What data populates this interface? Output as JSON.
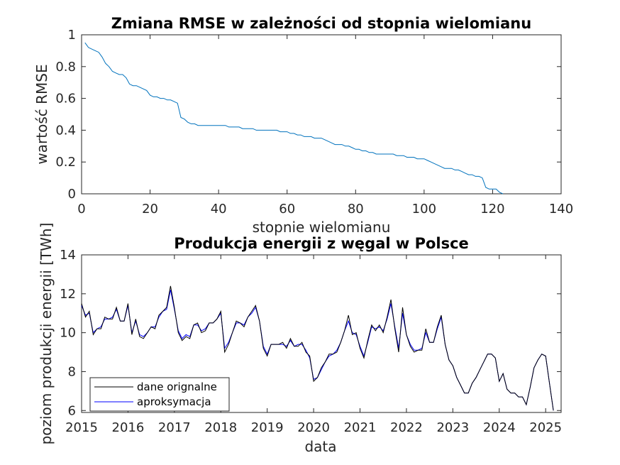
{
  "chart_data": [
    {
      "type": "line",
      "title": "Zmiana RMSE w zależności od stopnia wielomianu",
      "xlabel": "stopnie wielomianu",
      "ylabel": "wartość RMSE",
      "xlim": [
        0,
        140
      ],
      "ylim": [
        0,
        1
      ],
      "xticks": [
        0,
        20,
        40,
        60,
        80,
        100,
        120,
        140
      ],
      "yticks": [
        0,
        0.2,
        0.4,
        0.6,
        0.8,
        1
      ],
      "grid": false,
      "colors": {
        "line": "#0072BD"
      },
      "series": [
        {
          "x": [
            1,
            2,
            3,
            4,
            5,
            6,
            7,
            8,
            9,
            10,
            11,
            12,
            13,
            14,
            15,
            16,
            17,
            18,
            19,
            20,
            21,
            22,
            23,
            24,
            25,
            26,
            27,
            28,
            29,
            30,
            31,
            32,
            33,
            34,
            35,
            36,
            37,
            38,
            39,
            40,
            41,
            42,
            43,
            44,
            45,
            46,
            47,
            48,
            49,
            50,
            51,
            52,
            53,
            54,
            55,
            56,
            57,
            58,
            59,
            60,
            61,
            62,
            63,
            64,
            65,
            66,
            67,
            68,
            69,
            70,
            71,
            72,
            73,
            74,
            75,
            76,
            77,
            78,
            79,
            80,
            81,
            82,
            83,
            84,
            85,
            86,
            87,
            88,
            89,
            90,
            91,
            92,
            93,
            94,
            95,
            96,
            97,
            98,
            99,
            100,
            101,
            102,
            103,
            104,
            105,
            106,
            107,
            108,
            109,
            110,
            111,
            112,
            113,
            114,
            115,
            116,
            117,
            118,
            119,
            120,
            121,
            122,
            123
          ],
          "values": [
            0.95,
            0.92,
            0.91,
            0.9,
            0.89,
            0.86,
            0.82,
            0.8,
            0.77,
            0.76,
            0.75,
            0.75,
            0.73,
            0.69,
            0.68,
            0.68,
            0.67,
            0.66,
            0.65,
            0.62,
            0.61,
            0.61,
            0.6,
            0.6,
            0.59,
            0.59,
            0.58,
            0.57,
            0.48,
            0.47,
            0.45,
            0.44,
            0.44,
            0.43,
            0.43,
            0.43,
            0.43,
            0.43,
            0.43,
            0.43,
            0.43,
            0.43,
            0.42,
            0.42,
            0.42,
            0.42,
            0.41,
            0.41,
            0.41,
            0.41,
            0.4,
            0.4,
            0.4,
            0.4,
            0.4,
            0.4,
            0.4,
            0.39,
            0.39,
            0.39,
            0.38,
            0.38,
            0.37,
            0.37,
            0.36,
            0.36,
            0.36,
            0.35,
            0.35,
            0.35,
            0.34,
            0.33,
            0.32,
            0.31,
            0.31,
            0.31,
            0.3,
            0.3,
            0.29,
            0.28,
            0.28,
            0.27,
            0.27,
            0.26,
            0.26,
            0.25,
            0.25,
            0.25,
            0.25,
            0.25,
            0.25,
            0.24,
            0.24,
            0.24,
            0.23,
            0.23,
            0.23,
            0.22,
            0.22,
            0.22,
            0.21,
            0.2,
            0.19,
            0.18,
            0.17,
            0.16,
            0.16,
            0.16,
            0.15,
            0.15,
            0.14,
            0.13,
            0.12,
            0.12,
            0.11,
            0.11,
            0.1,
            0.04,
            0.03,
            0.03,
            0.03,
            0.01,
            0.0
          ]
        }
      ]
    },
    {
      "type": "line",
      "title": "Produkcja energii z węgal w Polsce",
      "xlabel": "data",
      "ylabel": "poziom produkcji energii [TWh]",
      "xlim": [
        "2015-01",
        "2025-05"
      ],
      "ylim": [
        5.9,
        14
      ],
      "xticks": [
        "2015",
        "2016",
        "2017",
        "2018",
        "2019",
        "2020",
        "2021",
        "2022",
        "2023",
        "2024",
        "2025"
      ],
      "yticks": [
        6,
        8,
        10,
        12,
        14
      ],
      "grid": false,
      "legend": {
        "position": "bottom-left"
      },
      "colors": {
        "original": "#000000",
        "approx": "#0000FF"
      },
      "x_start": "2015-01",
      "series": [
        {
          "name": "dane orignalne",
          "values": [
            11.5,
            10.8,
            11.1,
            9.9,
            10.2,
            10.2,
            10.8,
            10.7,
            10.7,
            11.3,
            10.6,
            10.6,
            11.5,
            9.9,
            10.7,
            9.8,
            9.7,
            10.0,
            10.3,
            10.2,
            10.9,
            11.1,
            11.3,
            12.4,
            11.3,
            10.0,
            9.6,
            9.8,
            9.7,
            10.4,
            10.5,
            10.0,
            10.1,
            10.5,
            10.5,
            10.7,
            11.1,
            9.0,
            9.4,
            10.0,
            10.6,
            10.5,
            10.3,
            10.8,
            11.1,
            11.4,
            10.6,
            9.2,
            8.8,
            9.4,
            9.4,
            9.4,
            9.5,
            9.2,
            9.7,
            9.3,
            9.3,
            9.5,
            9.0,
            8.8,
            7.5,
            7.7,
            8.2,
            8.5,
            8.9,
            8.9,
            9.0,
            9.5,
            10.1,
            10.9,
            9.9,
            10.0,
            9.2,
            8.7,
            9.6,
            10.4,
            10.1,
            10.4,
            10.0,
            10.8,
            11.7,
            10.2,
            9.0,
            11.3,
            9.9,
            9.3,
            9.0,
            9.1,
            9.1,
            10.2,
            9.5,
            9.5,
            10.3,
            10.9,
            9.4,
            8.6,
            8.3,
            7.7,
            7.3,
            6.9,
            6.9,
            7.4,
            7.7,
            8.1,
            8.5,
            8.9,
            8.9,
            8.7,
            7.5,
            7.9,
            7.1,
            6.9,
            6.9,
            6.7,
            6.7,
            6.3,
            7.2,
            8.2,
            8.6,
            8.9,
            8.8,
            7.4,
            6.0
          ],
          "values_extended_by_approx": true
        },
        {
          "name": "aproksymacja",
          "values": [
            11.4,
            10.9,
            11.0,
            10.0,
            10.2,
            10.3,
            10.7,
            10.7,
            10.8,
            11.2,
            10.6,
            10.6,
            11.4,
            10.0,
            10.6,
            9.9,
            9.8,
            10.0,
            10.3,
            10.3,
            10.8,
            11.1,
            11.2,
            12.2,
            11.2,
            10.1,
            9.7,
            9.9,
            9.8,
            10.4,
            10.4,
            10.1,
            10.2,
            10.5,
            10.5,
            10.7,
            11.0,
            9.2,
            9.5,
            10.0,
            10.5,
            10.5,
            10.4,
            10.8,
            11.0,
            11.3,
            10.6,
            9.3,
            8.9,
            9.4,
            9.4,
            9.4,
            9.4,
            9.3,
            9.6,
            9.3,
            9.4,
            9.4,
            9.1,
            8.7,
            7.6,
            7.7,
            8.1,
            8.5,
            8.8,
            8.9,
            9.1,
            9.5,
            10.1,
            10.6,
            10.0,
            9.9,
            9.3,
            8.8,
            9.5,
            10.3,
            10.2,
            10.3,
            10.1,
            10.7,
            11.5,
            10.3,
            9.2,
            11.0,
            9.9,
            9.4,
            9.1,
            9.1,
            9.2,
            10.0,
            9.5,
            9.5,
            10.2,
            10.8,
            9.4,
            8.6,
            8.3,
            7.7,
            7.3,
            6.9,
            6.9,
            7.4,
            7.7,
            8.1,
            8.5,
            8.9,
            8.9,
            8.7,
            7.5,
            7.9,
            7.1,
            6.9,
            6.9,
            6.7,
            6.7,
            6.3,
            7.2,
            8.2,
            8.6,
            8.9,
            8.8,
            7.4,
            6.0
          ]
        }
      ]
    }
  ]
}
